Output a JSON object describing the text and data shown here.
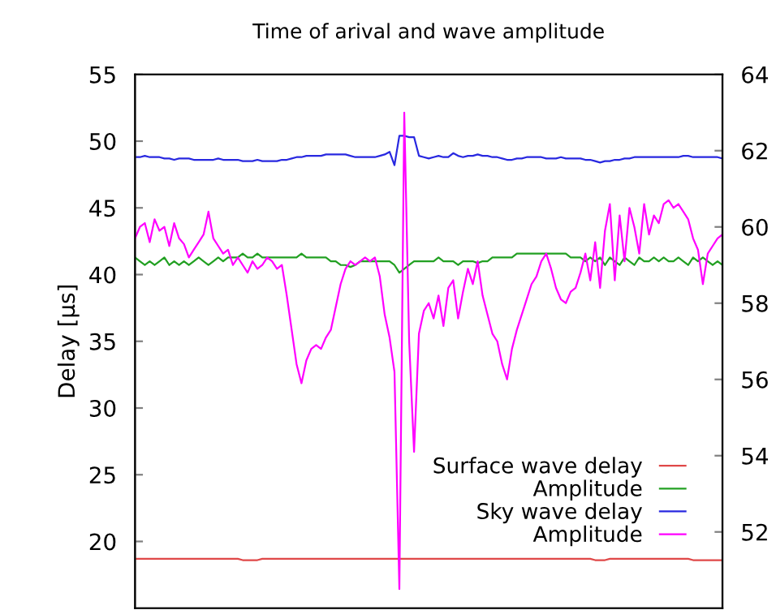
{
  "chart_data": {
    "type": "line",
    "title": "Time of arival and wave amplitude",
    "ylabel": "Delay [µs]",
    "categories": [
      null,
      null,
      null,
      null,
      null,
      null,
      null,
      null,
      null,
      null,
      null,
      null,
      null,
      null,
      null,
      null,
      null,
      null,
      null,
      null,
      null,
      null,
      null,
      null,
      null,
      null,
      null,
      null,
      null,
      null,
      null,
      null,
      null,
      null,
      null,
      null,
      null,
      null,
      null,
      null,
      null,
      null,
      null,
      null,
      null,
      null,
      null,
      null,
      null,
      null,
      null,
      null,
      null,
      null,
      null,
      null,
      null,
      null,
      null,
      null,
      null,
      null,
      null,
      null,
      null,
      null,
      null,
      null,
      null,
      null,
      null,
      null,
      null,
      null,
      null,
      null,
      null,
      null,
      null,
      null,
      null,
      null,
      null,
      null,
      null,
      null,
      null,
      null,
      null,
      null,
      null,
      null,
      null,
      null,
      null,
      null,
      null,
      null,
      null,
      null,
      null,
      null,
      null,
      null,
      null,
      null,
      null,
      null,
      null,
      null,
      null,
      null,
      null,
      null,
      null,
      null,
      null,
      null,
      null,
      null,
      null
    ],
    "ylim": [
      15,
      55
    ],
    "yticks": [
      20,
      25,
      30,
      35,
      40,
      45,
      50,
      55
    ],
    "y2lim": [
      50,
      64
    ],
    "y2ticks": [
      52,
      54,
      56,
      58,
      60,
      62,
      64
    ],
    "legend": "bottom right",
    "grid": false,
    "series": [
      {
        "name": "Surface wave delay",
        "color": "#e04848",
        "values": [
          18.7,
          18.7,
          18.7,
          18.7,
          18.7,
          18.7,
          18.7,
          18.7,
          18.7,
          18.7,
          18.7,
          18.7,
          18.7,
          18.7,
          18.7,
          18.7,
          18.7,
          18.7,
          18.7,
          18.7,
          18.7,
          18.7,
          18.6,
          18.6,
          18.6,
          18.6,
          18.7,
          18.7,
          18.7,
          18.7,
          18.7,
          18.7,
          18.7,
          18.7,
          18.7,
          18.7,
          18.7,
          18.7,
          18.7,
          18.7,
          18.7,
          18.7,
          18.7,
          18.7,
          18.7,
          18.7,
          18.7,
          18.7,
          18.7,
          18.7,
          18.7,
          18.7,
          18.7,
          18.7,
          18.7,
          18.7,
          18.7,
          18.7,
          18.7,
          18.7,
          18.7,
          18.7,
          18.7,
          18.7,
          18.7,
          18.7,
          18.7,
          18.7,
          18.7,
          18.7,
          18.7,
          18.7,
          18.7,
          18.7,
          18.7,
          18.7,
          18.7,
          18.7,
          18.7,
          18.7,
          18.7,
          18.7,
          18.7,
          18.7,
          18.7,
          18.7,
          18.7,
          18.7,
          18.7,
          18.7,
          18.7,
          18.7,
          18.7,
          18.7,
          18.6,
          18.6,
          18.6,
          18.7,
          18.7,
          18.7,
          18.7,
          18.7,
          18.7,
          18.7,
          18.7,
          18.7,
          18.7,
          18.7,
          18.7,
          18.7,
          18.7,
          18.7,
          18.7,
          18.7,
          18.6,
          18.6,
          18.6,
          18.6,
          18.6,
          18.6,
          18.6
        ]
      },
      {
        "name": "Amplitude",
        "color": "#22a022",
        "axis": "y2",
        "values": [
          59.2,
          59.1,
          59.0,
          59.1,
          59.0,
          59.1,
          59.2,
          59.0,
          59.1,
          59.0,
          59.1,
          59.0,
          59.1,
          59.2,
          59.1,
          59.0,
          59.1,
          59.2,
          59.1,
          59.2,
          59.2,
          59.2,
          59.3,
          59.2,
          59.2,
          59.3,
          59.2,
          59.2,
          59.2,
          59.2,
          59.2,
          59.2,
          59.2,
          59.2,
          59.3,
          59.2,
          59.2,
          59.2,
          59.2,
          59.2,
          59.1,
          59.1,
          59.0,
          59.0,
          58.95,
          59.0,
          59.1,
          59.1,
          59.1,
          59.1,
          59.1,
          59.1,
          59.1,
          59.0,
          58.8,
          58.9,
          59.0,
          59.1,
          59.1,
          59.1,
          59.1,
          59.1,
          59.2,
          59.1,
          59.1,
          59.1,
          59.0,
          59.1,
          59.1,
          59.1,
          59.05,
          59.1,
          59.1,
          59.2,
          59.2,
          59.2,
          59.2,
          59.2,
          59.3,
          59.3,
          59.3,
          59.3,
          59.3,
          59.3,
          59.3,
          59.3,
          59.3,
          59.3,
          59.3,
          59.2,
          59.2,
          59.2,
          59.1,
          59.2,
          59.1,
          59.2,
          59.0,
          59.2,
          59.1,
          59.0,
          59.2,
          59.1,
          59.0,
          59.2,
          59.1,
          59.1,
          59.2,
          59.1,
          59.2,
          59.1,
          59.1,
          59.2,
          59.1,
          59.0,
          59.2,
          59.1,
          59.2,
          59.1,
          59.0,
          59.1,
          59.0
        ]
      },
      {
        "name": "Sky wave delay",
        "color": "#2828e0",
        "values": [
          48.8,
          48.8,
          48.9,
          48.8,
          48.8,
          48.8,
          48.7,
          48.7,
          48.6,
          48.7,
          48.7,
          48.7,
          48.6,
          48.6,
          48.6,
          48.6,
          48.6,
          48.7,
          48.6,
          48.6,
          48.6,
          48.6,
          48.5,
          48.5,
          48.5,
          48.6,
          48.5,
          48.5,
          48.5,
          48.5,
          48.6,
          48.6,
          48.7,
          48.8,
          48.8,
          48.9,
          48.9,
          48.9,
          48.9,
          49.0,
          49.0,
          49.0,
          49.0,
          49.0,
          48.9,
          48.8,
          48.8,
          48.8,
          48.8,
          48.8,
          48.9,
          49.0,
          49.2,
          48.2,
          50.4,
          50.4,
          50.3,
          50.3,
          48.9,
          48.8,
          48.7,
          48.8,
          48.9,
          48.8,
          48.8,
          49.1,
          48.9,
          48.8,
          48.9,
          48.9,
          49.0,
          48.9,
          48.9,
          48.8,
          48.8,
          48.7,
          48.6,
          48.6,
          48.7,
          48.7,
          48.8,
          48.8,
          48.8,
          48.8,
          48.7,
          48.7,
          48.7,
          48.8,
          48.7,
          48.7,
          48.7,
          48.7,
          48.6,
          48.6,
          48.5,
          48.4,
          48.5,
          48.5,
          48.6,
          48.6,
          48.7,
          48.7,
          48.8,
          48.8,
          48.8,
          48.8,
          48.8,
          48.8,
          48.8,
          48.8,
          48.8,
          48.8,
          48.9,
          48.9,
          48.8,
          48.8,
          48.8,
          48.8,
          48.8,
          48.8,
          48.7
        ]
      },
      {
        "name": "Amplitude",
        "color": "#ff00ff",
        "axis": "y2",
        "values": [
          59.7,
          60.0,
          60.1,
          59.6,
          60.2,
          59.9,
          60.0,
          59.5,
          60.1,
          59.7,
          59.55,
          59.2,
          59.4,
          59.6,
          59.8,
          60.4,
          59.7,
          59.5,
          59.3,
          59.4,
          59.0,
          59.2,
          59.0,
          58.8,
          59.1,
          58.9,
          59.0,
          59.2,
          59.1,
          58.9,
          59.0,
          58.2,
          57.3,
          56.4,
          55.9,
          56.5,
          56.8,
          56.9,
          56.8,
          57.1,
          57.3,
          57.9,
          58.5,
          58.9,
          59.1,
          59.0,
          59.1,
          59.2,
          59.1,
          59.2,
          58.7,
          57.7,
          57.1,
          56.2,
          50.5,
          63.0,
          57.0,
          54.1,
          57.2,
          57.8,
          58.0,
          57.6,
          58.2,
          57.4,
          58.4,
          58.6,
          57.6,
          58.3,
          58.9,
          58.5,
          59.1,
          58.2,
          57.7,
          57.2,
          57.0,
          56.4,
          56.0,
          56.8,
          57.3,
          57.7,
          58.1,
          58.5,
          58.7,
          59.1,
          59.3,
          58.9,
          58.4,
          58.1,
          58.0,
          58.3,
          58.4,
          58.8,
          59.3,
          58.6,
          59.6,
          58.4,
          59.9,
          60.6,
          58.6,
          60.3,
          59.1,
          60.5,
          60.0,
          59.3,
          60.6,
          59.8,
          60.3,
          60.1,
          60.6,
          60.7,
          60.5,
          60.6,
          60.4,
          60.2,
          59.7,
          59.4,
          58.5,
          59.3,
          59.5,
          59.7,
          59.8
        ]
      }
    ]
  }
}
